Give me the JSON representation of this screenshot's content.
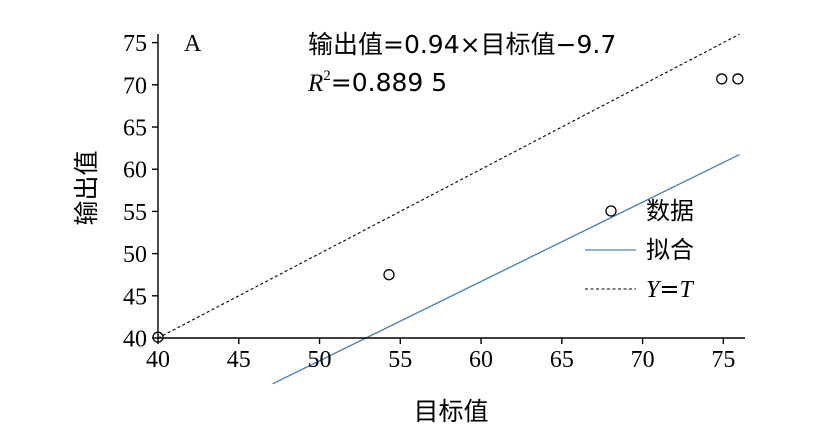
{
  "chart_data": {
    "type": "scatter",
    "panel_label": "A",
    "xlabel": "目标值",
    "ylabel": "输出值",
    "xlim": [
      40,
      76
    ],
    "ylim": [
      40,
      76
    ],
    "x_ticks": [
      40,
      45,
      50,
      55,
      60,
      65,
      70,
      75
    ],
    "y_ticks": [
      40,
      45,
      50,
      55,
      60,
      65,
      70,
      75
    ],
    "grid": false,
    "legend_position": "right",
    "series": [
      {
        "name": "数据",
        "kind": "points",
        "marker": "open-circle",
        "color": "#000000",
        "points": [
          {
            "x": 40.0,
            "y": 40.1
          },
          {
            "x": 54.3,
            "y": 47.5
          },
          {
            "x": 74.9,
            "y": 70.7
          },
          {
            "x": 75.9,
            "y": 70.7
          }
        ]
      },
      {
        "name": "拟合",
        "kind": "line",
        "color": "#4a7fb5",
        "slope": 0.94,
        "intercept": -9.7,
        "x_range": [
          47.1,
          76.0
        ]
      },
      {
        "name": "Y=T",
        "kind": "dashed-line",
        "color": "#000000",
        "slope": 1,
        "intercept": 0,
        "x_range": [
          40,
          76
        ]
      }
    ],
    "annotations": {
      "equation": "输出值=0.94×目标值−9.7",
      "r2_label": "R",
      "r2_sup": "2",
      "r2_value": "=0.889 5"
    },
    "legend": {
      "data_label": "数据",
      "fit_label": "拟合",
      "ref_label_y": "Y",
      "ref_label_eq": "=",
      "ref_label_t": "T"
    }
  }
}
